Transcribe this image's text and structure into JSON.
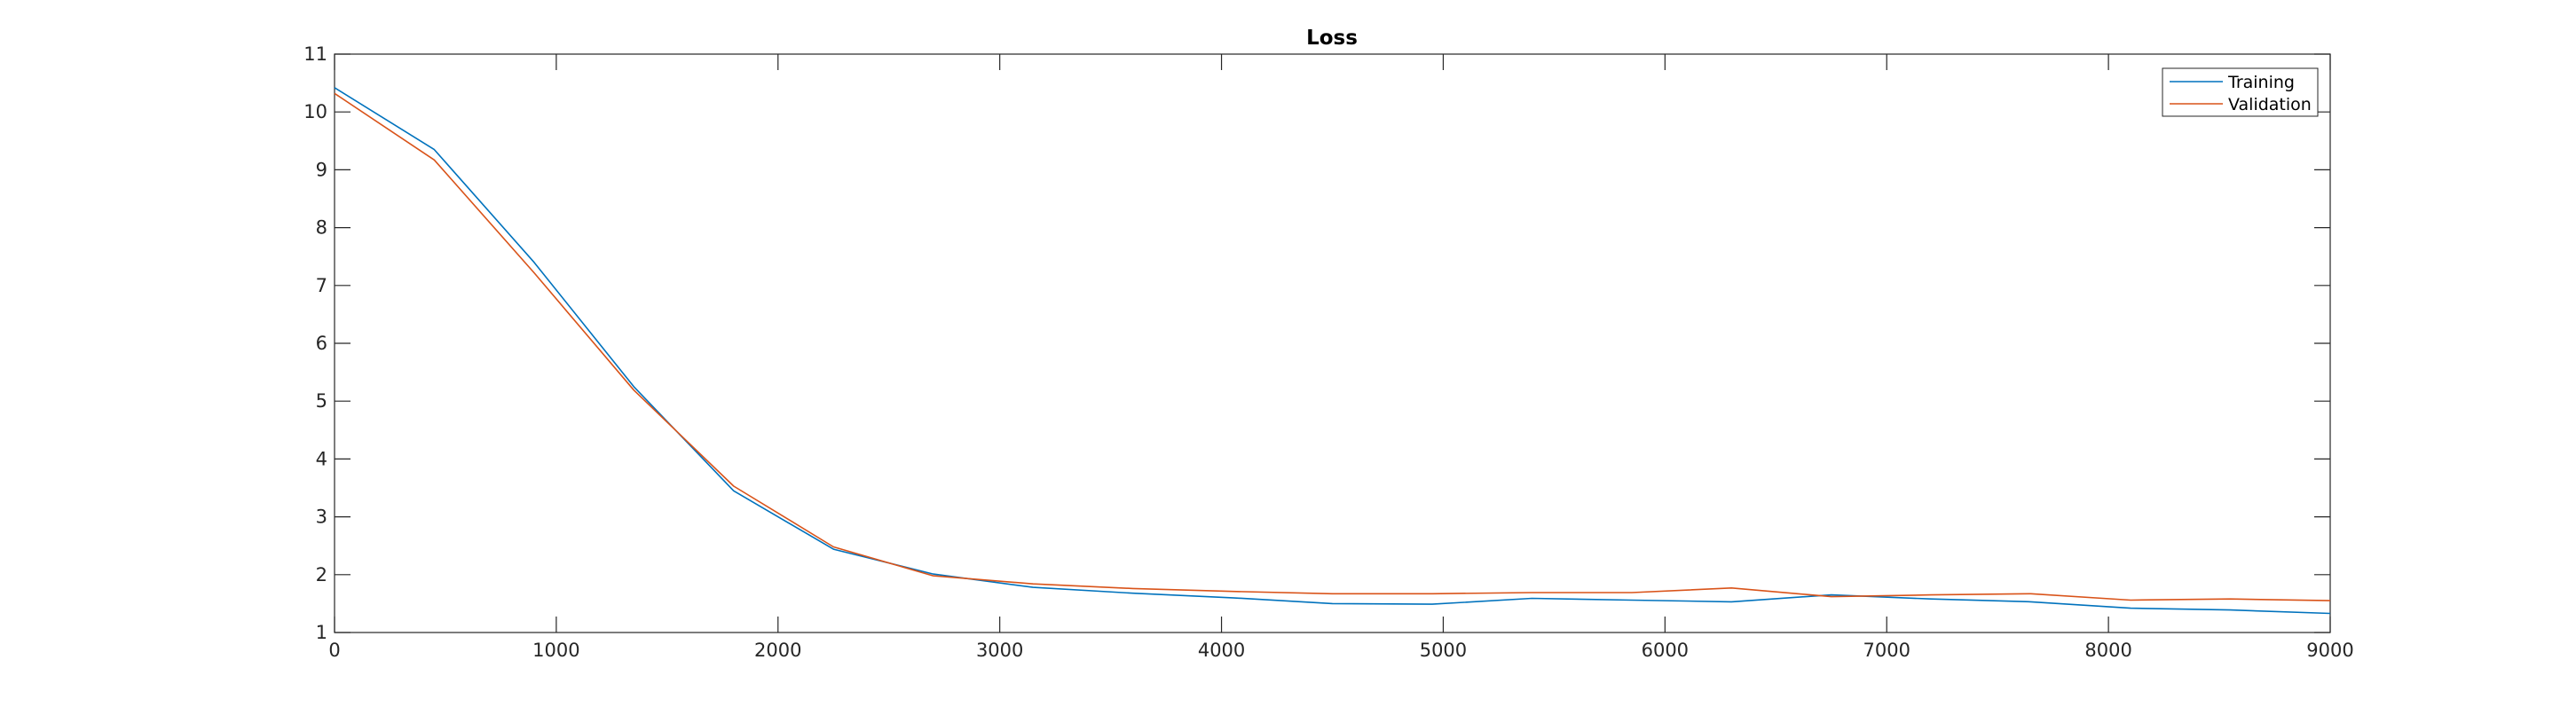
{
  "chart_data": {
    "type": "line",
    "title": "Loss",
    "xlabel": "",
    "ylabel": "",
    "xlim": [
      0,
      9000
    ],
    "ylim": [
      1,
      11
    ],
    "xticks": [
      0,
      1000,
      2000,
      3000,
      4000,
      5000,
      6000,
      7000,
      8000,
      9000
    ],
    "yticks": [
      1,
      2,
      3,
      4,
      5,
      6,
      7,
      8,
      9,
      10,
      11
    ],
    "grid": false,
    "legend_position": "top-right",
    "series": [
      {
        "name": "Training",
        "color": "#0072BD",
        "x": [
          0,
          450,
          900,
          1350,
          1800,
          2250,
          2700,
          3150,
          3600,
          4050,
          4500,
          4950,
          5400,
          5850,
          6300,
          6750,
          7200,
          7650,
          8100,
          8550,
          9000
        ],
        "y": [
          10.42,
          9.35,
          7.4,
          5.25,
          3.45,
          2.44,
          2.01,
          1.78,
          1.68,
          1.6,
          1.5,
          1.49,
          1.59,
          1.56,
          1.53,
          1.65,
          1.58,
          1.53,
          1.42,
          1.39,
          1.33
        ]
      },
      {
        "name": "Validation",
        "color": "#D95319",
        "x": [
          0,
          450,
          900,
          1350,
          1800,
          2250,
          2700,
          3150,
          3600,
          4050,
          4500,
          4950,
          5400,
          5850,
          6300,
          6750,
          7200,
          7650,
          8100,
          8550,
          9000
        ],
        "y": [
          10.32,
          9.17,
          7.22,
          5.19,
          3.53,
          2.48,
          1.98,
          1.84,
          1.76,
          1.71,
          1.67,
          1.67,
          1.69,
          1.69,
          1.77,
          1.62,
          1.65,
          1.67,
          1.56,
          1.58,
          1.55
        ]
      }
    ]
  }
}
